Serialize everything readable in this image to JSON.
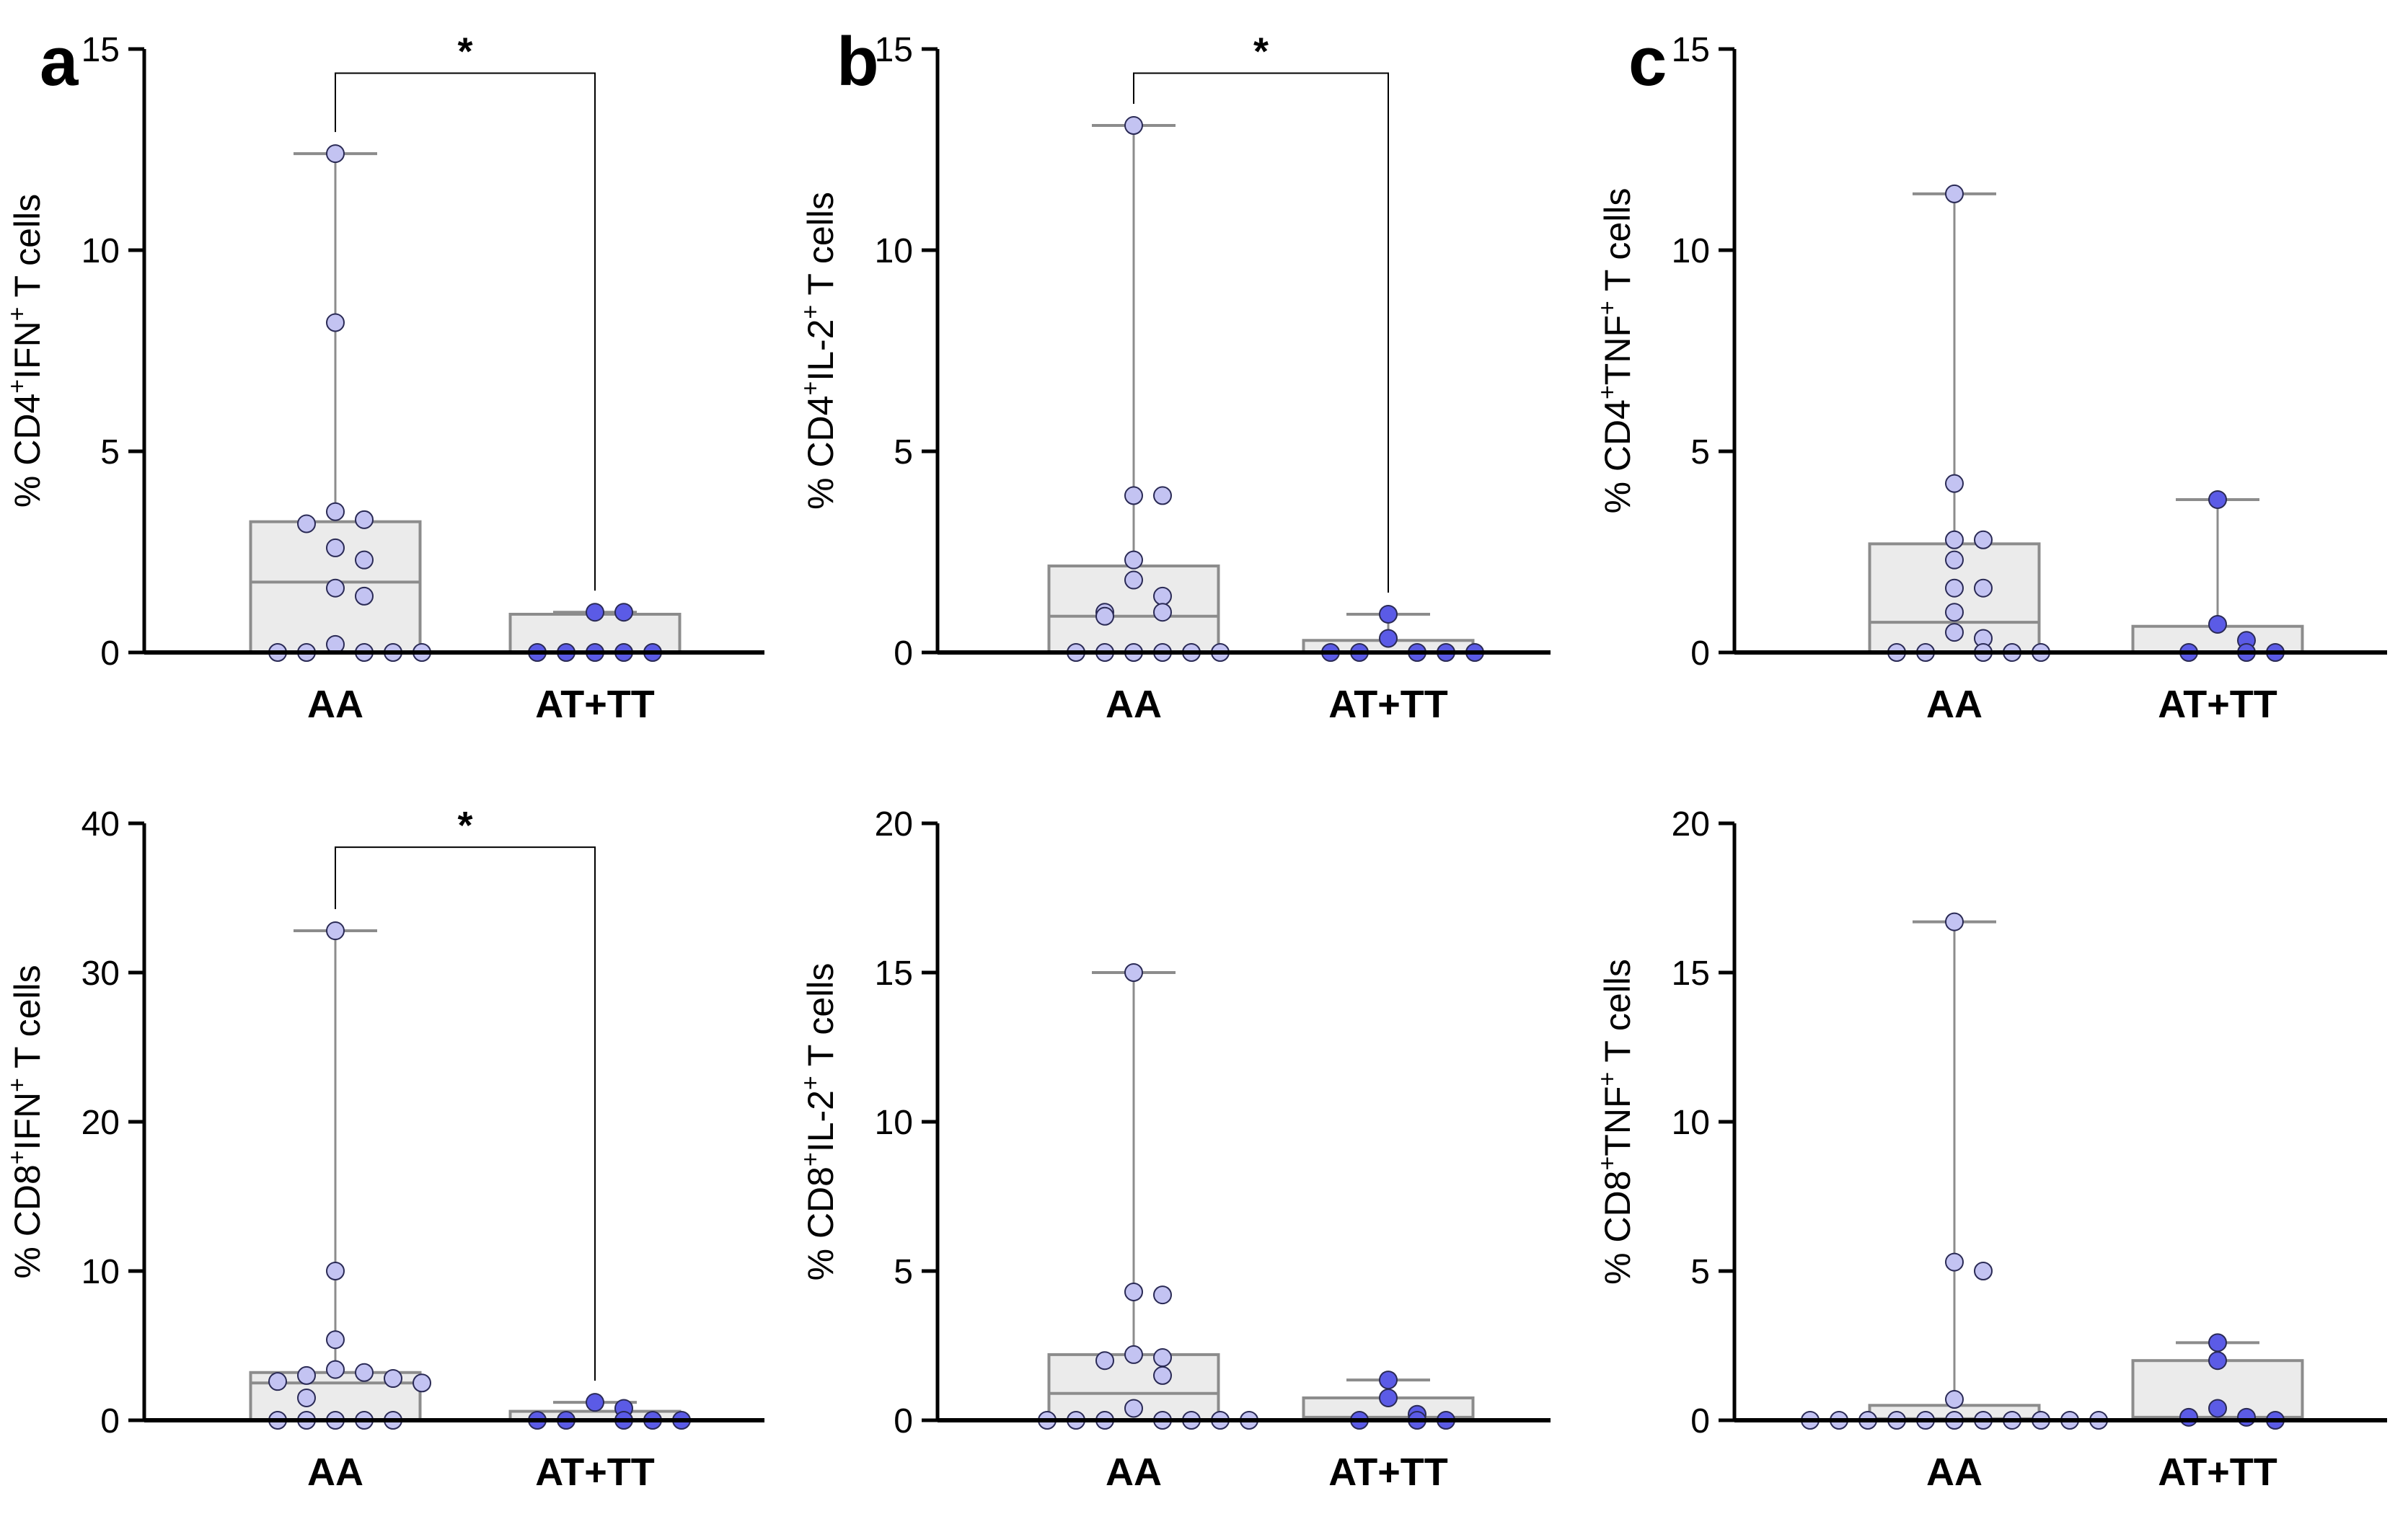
{
  "figure": {
    "panel_letters": [
      "a",
      "b",
      "c"
    ],
    "category_labels": [
      "AA",
      "AT+TT"
    ],
    "colors": {
      "aa_point": "#c3c3f2",
      "attt_point": "#5b5be6",
      "point_stroke": "#2a2a55",
      "box_fill": "#ebebeb",
      "box_stroke": "#8c8c8c",
      "axis": "#000000"
    }
  },
  "chart_data": [
    {
      "type": "box",
      "panel": "a",
      "ylabel": "% CD4+IFN+ T cells",
      "categories": [
        "AA",
        "AT+TT"
      ],
      "ylim": [
        0,
        15
      ],
      "yticks": [
        0,
        5,
        10,
        15
      ],
      "significance": "*",
      "groups": [
        {
          "name": "AA",
          "min": 0,
          "q1": 0,
          "median": 1.75,
          "q3": 3.25,
          "max": 12.4,
          "points": [
            12.4,
            8.2,
            3.5,
            3.3,
            3.2,
            2.6,
            2.3,
            1.6,
            1.4,
            0.2,
            0,
            0,
            0,
            0,
            0
          ]
        },
        {
          "name": "AT+TT",
          "min": 0,
          "q1": 0,
          "median": 0,
          "q3": 0.95,
          "max": 1.0,
          "points": [
            1.0,
            1.0,
            0,
            0,
            0,
            0,
            0
          ]
        }
      ]
    },
    {
      "type": "box",
      "panel": "b",
      "ylabel": "% CD4+IL-2+ T cells",
      "categories": [
        "AA",
        "AT+TT"
      ],
      "ylim": [
        0,
        15
      ],
      "yticks": [
        0,
        5,
        10,
        15
      ],
      "significance": "*",
      "groups": [
        {
          "name": "AA",
          "min": 0,
          "q1": 0,
          "median": 0.9,
          "q3": 2.15,
          "max": 13.1,
          "points": [
            13.1,
            3.9,
            3.9,
            2.3,
            1.8,
            1.4,
            1.0,
            1.0,
            0.9,
            0,
            0,
            0,
            0,
            0,
            0
          ]
        },
        {
          "name": "AT+TT",
          "min": 0,
          "q1": 0,
          "median": 0,
          "q3": 0.3,
          "max": 0.95,
          "points": [
            0.95,
            0.35,
            0,
            0,
            0,
            0,
            0
          ]
        }
      ]
    },
    {
      "type": "box",
      "panel": "c",
      "ylabel": "% CD4+TNF+ T cells",
      "categories": [
        "AA",
        "AT+TT"
      ],
      "ylim": [
        0,
        15
      ],
      "yticks": [
        0,
        5,
        10,
        15
      ],
      "significance": "",
      "groups": [
        {
          "name": "AA",
          "min": 0,
          "q1": 0,
          "median": 0.75,
          "q3": 2.7,
          "max": 11.4,
          "points": [
            11.4,
            4.2,
            2.8,
            2.8,
            2.3,
            1.6,
            1.6,
            1.0,
            0.5,
            0.35,
            0,
            0,
            0,
            0,
            0
          ]
        },
        {
          "name": "AT+TT",
          "min": 0,
          "q1": 0,
          "median": 0,
          "q3": 0.65,
          "max": 3.8,
          "points": [
            3.8,
            0.7,
            0.3,
            0,
            0,
            0
          ]
        }
      ]
    },
    {
      "type": "box",
      "panel": "a",
      "ylabel": "% CD8+IFN+ T cells",
      "categories": [
        "AA",
        "AT+TT"
      ],
      "ylim": [
        0,
        40
      ],
      "yticks": [
        0,
        10,
        20,
        30,
        40
      ],
      "significance": "*",
      "groups": [
        {
          "name": "AA",
          "min": 0,
          "q1": 0,
          "median": 2.5,
          "q3": 3.2,
          "max": 32.8,
          "points": [
            32.8,
            10.0,
            5.4,
            3.4,
            3.2,
            3.0,
            2.8,
            2.6,
            2.5,
            1.5,
            0,
            0,
            0,
            0,
            0
          ]
        },
        {
          "name": "AT+TT",
          "min": 0,
          "q1": 0,
          "median": 0,
          "q3": 0.6,
          "max": 1.2,
          "points": [
            1.2,
            0.8,
            0,
            0,
            0,
            0,
            0
          ]
        }
      ]
    },
    {
      "type": "box",
      "panel": "b",
      "ylabel": "% CD8+IL-2+ T cells",
      "categories": [
        "AA",
        "AT+TT"
      ],
      "ylim": [
        0,
        20
      ],
      "yticks": [
        0,
        5,
        10,
        15,
        20
      ],
      "significance": "",
      "groups": [
        {
          "name": "AA",
          "min": 0,
          "q1": 0,
          "median": 0.9,
          "q3": 2.2,
          "max": 15.0,
          "points": [
            15.0,
            4.3,
            4.2,
            2.2,
            2.1,
            2.0,
            1.5,
            0.4,
            0,
            0,
            0,
            0,
            0,
            0,
            0
          ]
        },
        {
          "name": "AT+TT",
          "min": 0,
          "q1": 0,
          "median": 0.1,
          "q3": 0.75,
          "max": 1.35,
          "points": [
            1.35,
            0.75,
            0.2,
            0,
            0,
            0
          ]
        }
      ]
    },
    {
      "type": "box",
      "panel": "c",
      "ylabel": "% CD8+TNF+ T cells",
      "categories": [
        "AA",
        "AT+TT"
      ],
      "ylim": [
        0,
        20
      ],
      "yticks": [
        0,
        5,
        10,
        15,
        20
      ],
      "significance": "",
      "groups": [
        {
          "name": "AA",
          "min": 0,
          "q1": 0,
          "median": 0.05,
          "q3": 0.5,
          "max": 16.7,
          "points": [
            16.7,
            5.3,
            5.0,
            0.7,
            0,
            0,
            0,
            0,
            0,
            0,
            0,
            0,
            0,
            0,
            0
          ]
        },
        {
          "name": "AT+TT",
          "min": 0,
          "q1": 0,
          "median": 0.1,
          "q3": 2.0,
          "max": 2.6,
          "points": [
            2.6,
            2.0,
            0.4,
            0.1,
            0.1,
            0
          ]
        }
      ]
    }
  ]
}
